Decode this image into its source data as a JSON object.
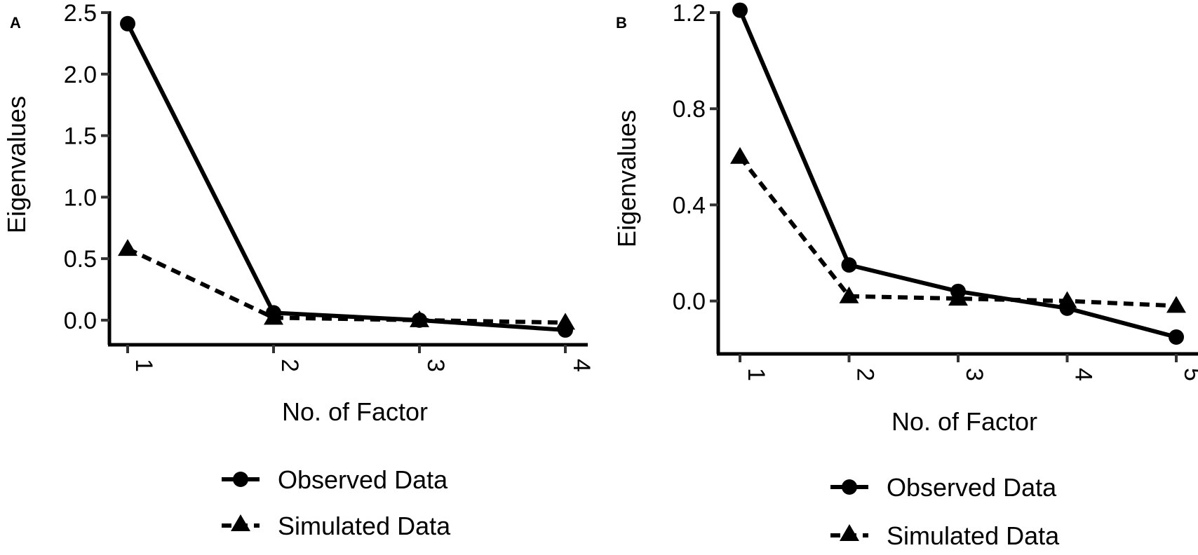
{
  "chart_data": [
    {
      "panel": "A",
      "type": "line",
      "xlabel": "No. of Factor",
      "ylabel": "Eigenvalues",
      "categories": [
        "1",
        "2",
        "3",
        "4"
      ],
      "ylim": [
        -0.2,
        2.5
      ],
      "yticks": [
        "0.0",
        "0.5",
        "1.0",
        "1.5",
        "2.0",
        "2.5"
      ],
      "ytick_values": [
        0.0,
        0.5,
        1.0,
        1.5,
        2.0,
        2.5
      ],
      "legend_position": "bottom",
      "series": [
        {
          "name": "Observed Data",
          "marker": "circle",
          "line": "solid",
          "values": [
            2.41,
            0.06,
            0.0,
            -0.08
          ]
        },
        {
          "name": "Simulated Data",
          "marker": "triangle",
          "line": "dashed",
          "values": [
            0.58,
            0.02,
            0.0,
            -0.02
          ]
        }
      ]
    },
    {
      "panel": "B",
      "type": "line",
      "xlabel": "No. of Factor",
      "ylabel": "Eigenvalues",
      "categories": [
        "1",
        "2",
        "3",
        "4",
        "5"
      ],
      "ylim": [
        -0.22,
        1.25
      ],
      "yticks": [
        "0.0",
        "0.4",
        "0.8",
        "1.2"
      ],
      "ytick_values": [
        0.0,
        0.4,
        0.8,
        1.2
      ],
      "legend_position": "bottom",
      "series": [
        {
          "name": "Observed Data",
          "marker": "circle",
          "line": "solid",
          "values": [
            1.21,
            0.15,
            0.04,
            -0.03,
            -0.15
          ]
        },
        {
          "name": "Simulated Data",
          "marker": "triangle",
          "line": "dashed",
          "values": [
            0.6,
            0.02,
            0.01,
            0.0,
            -0.02
          ]
        }
      ]
    }
  ]
}
